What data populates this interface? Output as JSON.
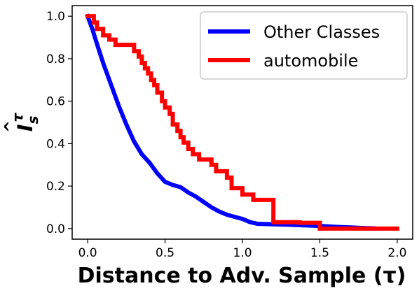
{
  "chart_data": {
    "type": "line",
    "xlabel": "Distance to Adv. Sample (τ)",
    "ylabel_base": "I",
    "ylabel_sub": "s",
    "ylabel_sup": "τ",
    "xlim": [
      -0.1,
      2.1
    ],
    "ylim": [
      -0.05,
      1.05
    ],
    "xticks": [
      0.0,
      0.5,
      1.0,
      1.5,
      2.0
    ],
    "xtick_labels": [
      "0.0",
      "0.5",
      "1.0",
      "1.5",
      "2.0"
    ],
    "yticks": [
      0.0,
      0.2,
      0.4,
      0.6,
      0.8,
      1.0
    ],
    "ytick_labels": [
      "0.0",
      "0.2",
      "0.4",
      "0.6",
      "0.8",
      "1.0"
    ],
    "grid": false,
    "legend_position": "top-right",
    "series": [
      {
        "name": "Other Classes",
        "color": "#0000ff",
        "step": false,
        "x": [
          0.0,
          0.03,
          0.06,
          0.1,
          0.15,
          0.2,
          0.25,
          0.3,
          0.35,
          0.4,
          0.45,
          0.5,
          0.55,
          0.6,
          0.65,
          0.7,
          0.75,
          0.8,
          0.85,
          0.9,
          0.95,
          1.0,
          1.05,
          1.1,
          1.2,
          1.3,
          1.4,
          1.5,
          1.6,
          1.7,
          1.8,
          1.85
        ],
        "y": [
          1.0,
          0.94,
          0.87,
          0.78,
          0.68,
          0.58,
          0.49,
          0.41,
          0.35,
          0.31,
          0.26,
          0.22,
          0.205,
          0.195,
          0.17,
          0.15,
          0.125,
          0.1,
          0.08,
          0.065,
          0.055,
          0.045,
          0.03,
          0.022,
          0.02,
          0.018,
          0.015,
          0.012,
          0.008,
          0.005,
          0.002,
          0.001
        ]
      },
      {
        "name": "automobile",
        "color": "#ff0000",
        "step": true,
        "x": [
          0.0,
          0.04,
          0.06,
          0.1,
          0.14,
          0.18,
          0.25,
          0.3,
          0.33,
          0.35,
          0.37,
          0.39,
          0.41,
          0.43,
          0.45,
          0.48,
          0.5,
          0.53,
          0.55,
          0.58,
          0.6,
          0.62,
          0.65,
          0.68,
          0.72,
          0.8,
          0.83,
          0.86,
          0.9,
          0.93,
          1.0,
          1.07,
          1.1,
          1.2,
          1.37,
          1.5,
          2.0
        ],
        "y": [
          1.0,
          0.97,
          0.94,
          0.91,
          0.89,
          0.865,
          0.865,
          0.835,
          0.81,
          0.78,
          0.755,
          0.73,
          0.7,
          0.675,
          0.64,
          0.6,
          0.57,
          0.54,
          0.49,
          0.46,
          0.43,
          0.405,
          0.375,
          0.35,
          0.325,
          0.3,
          0.27,
          0.27,
          0.24,
          0.19,
          0.16,
          0.135,
          0.135,
          0.03,
          0.027,
          0.0,
          0.0
        ]
      }
    ]
  }
}
